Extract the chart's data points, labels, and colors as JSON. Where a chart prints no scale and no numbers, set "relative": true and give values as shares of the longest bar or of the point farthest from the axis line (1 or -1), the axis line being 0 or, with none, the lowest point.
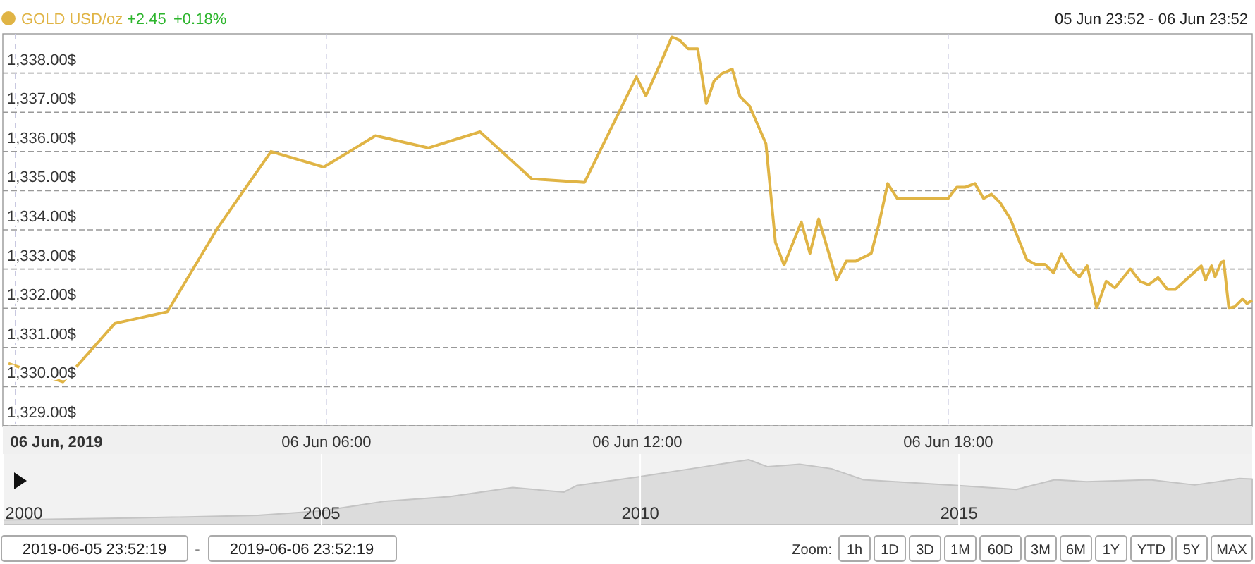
{
  "chart_data": [
    {
      "type": "line",
      "legend": "top left",
      "grid": true,
      "marker": "none",
      "line_style": "solid",
      "annotations": [
        "+2.45",
        "+0.18%",
        "05 Jun 23:52 - 06 Jun 23:52"
      ],
      "xlim": [
        "2019-06-05T23:52",
        "2019-06-06T23:52"
      ],
      "xticks": [
        {
          "value": "2019-06-06T00:00",
          "label": "06 Jun, 2019"
        },
        {
          "value": "2019-06-06T06:00",
          "label": "06 Jun 06:00"
        },
        {
          "value": "2019-06-06T12:00",
          "label": "06 Jun 12:00"
        },
        {
          "value": "2019-06-06T18:00",
          "label": "06 Jun 18:00"
        }
      ],
      "ylim": [
        1329,
        1339
      ],
      "yticks": [
        {
          "value": 1329,
          "label": "1,329.00$"
        },
        {
          "value": 1330,
          "label": "1,330.00$"
        },
        {
          "value": 1331,
          "label": "1,331.00$"
        },
        {
          "value": 1332,
          "label": "1,332.00$"
        },
        {
          "value": 1333,
          "label": "1,333.00$"
        },
        {
          "value": 1334,
          "label": "1,334.00$"
        },
        {
          "value": 1335,
          "label": "1,335.00$"
        },
        {
          "value": 1336,
          "label": "1,336.00$"
        },
        {
          "value": 1337,
          "label": "1,337.00$"
        },
        {
          "value": 1338,
          "label": "1,338.00$"
        }
      ],
      "series": [
        {
          "name": "GOLD USD/oz",
          "color": "#e0b445",
          "x": [
            "2019-06-05T23:52",
            "2019-06-06T00:55",
            "2019-06-06T01:55",
            "2019-06-06T02:56",
            "2019-06-06T03:54",
            "2019-06-06T04:56",
            "2019-06-06T05:57",
            "2019-06-06T06:57",
            "2019-06-06T07:58",
            "2019-06-06T08:58",
            "2019-06-06T09:58",
            "2019-06-06T10:59",
            "2019-06-06T11:59",
            "2019-06-06T12:10",
            "2019-06-06T12:28",
            "2019-06-06T12:40",
            "2019-06-06T12:49",
            "2019-06-06T12:59",
            "2019-06-06T13:10",
            "2019-06-06T13:20",
            "2019-06-06T13:29",
            "2019-06-06T13:39",
            "2019-06-06T13:50",
            "2019-06-06T13:59",
            "2019-06-06T14:10",
            "2019-06-06T14:29",
            "2019-06-06T14:40",
            "2019-06-06T14:50",
            "2019-06-06T15:10",
            "2019-06-06T15:20",
            "2019-06-06T15:30",
            "2019-06-06T15:51",
            "2019-06-06T16:02",
            "2019-06-06T16:13",
            "2019-06-06T16:31",
            "2019-06-06T16:40",
            "2019-06-06T16:50",
            "2019-06-06T17:01",
            "2019-06-06T18:00",
            "2019-06-06T18:10",
            "2019-06-06T18:20",
            "2019-06-06T18:31",
            "2019-06-06T18:41",
            "2019-06-06T18:50",
            "2019-06-06T19:00",
            "2019-06-06T19:12",
            "2019-06-06T19:31",
            "2019-06-06T19:41",
            "2019-06-06T19:52",
            "2019-06-06T20:02",
            "2019-06-06T20:11",
            "2019-06-06T20:22",
            "2019-06-06T20:32",
            "2019-06-06T20:41",
            "2019-06-06T20:52",
            "2019-06-06T21:03",
            "2019-06-06T21:13",
            "2019-06-06T21:31",
            "2019-06-06T21:42",
            "2019-06-06T21:52",
            "2019-06-06T22:03",
            "2019-06-06T22:14",
            "2019-06-06T22:23",
            "2019-06-06T22:53",
            "2019-06-06T22:58",
            "2019-06-06T23:05",
            "2019-06-06T23:09",
            "2019-06-06T23:16",
            "2019-06-06T23:19",
            "2019-06-06T23:25",
            "2019-06-06T23:32",
            "2019-06-06T23:41",
            "2019-06-06T23:46",
            "2019-06-06T23:52"
          ],
          "values": [
            1330.59,
            1330.12,
            1331.61,
            1331.91,
            1334.04,
            1336.0,
            1335.6,
            1336.4,
            1336.09,
            1336.5,
            1335.3,
            1335.21,
            1337.9,
            1337.42,
            1338.3,
            1338.92,
            1338.84,
            1338.62,
            1338.62,
            1337.22,
            1337.8,
            1338.0,
            1338.1,
            1337.4,
            1337.16,
            1336.2,
            1333.68,
            1333.1,
            1334.2,
            1333.4,
            1334.28,
            1332.72,
            1333.2,
            1333.2,
            1333.4,
            1334.16,
            1335.18,
            1334.8,
            1334.8,
            1335.09,
            1335.09,
            1335.18,
            1334.8,
            1334.91,
            1334.7,
            1334.28,
            1333.24,
            1333.12,
            1333.12,
            1332.9,
            1333.38,
            1333.0,
            1332.8,
            1333.08,
            1332.0,
            1332.69,
            1332.52,
            1333.0,
            1332.69,
            1332.6,
            1332.78,
            1332.48,
            1332.48,
            1333.08,
            1332.72,
            1333.08,
            1332.8,
            1333.17,
            1333.2,
            1332.0,
            1332.04,
            1332.24,
            1332.12,
            1332.2
          ]
        }
      ]
    },
    {
      "type": "area",
      "relative": true,
      "tick_labels": "x",
      "grid": "x",
      "xlim": [
        2000,
        2019.6
      ],
      "xticks": [
        2000,
        2005,
        2010,
        2015
      ],
      "annotations": [
        "2019-06-05 23:52:19",
        "-",
        "2019-06-06 23:52:19",
        "Zoom:",
        "1h",
        "1D",
        "3D",
        "1M",
        "60D",
        "3M",
        "6M",
        "1Y",
        "YTD",
        "5Y",
        "MAX"
      ],
      "series": [
        {
          "color": "#dcdcdc",
          "x": [
            2000,
            2002,
            2004,
            2005,
            2006,
            2007,
            2008,
            2008.8,
            2009,
            2010,
            2011,
            2011.7,
            2012,
            2012.5,
            2013,
            2013.5,
            2014,
            2015,
            2015.9,
            2016.5,
            2017,
            2018,
            2018.7,
            2019.4,
            2019.6
          ],
          "values": [
            0.07,
            0.1,
            0.14,
            0.21,
            0.36,
            0.43,
            0.57,
            0.5,
            0.6,
            0.74,
            0.89,
            1,
            0.89,
            0.93,
            0.86,
            0.69,
            0.66,
            0.6,
            0.54,
            0.69,
            0.66,
            0.69,
            0.61,
            0.71,
            0.7
          ]
        }
      ]
    }
  ]
}
